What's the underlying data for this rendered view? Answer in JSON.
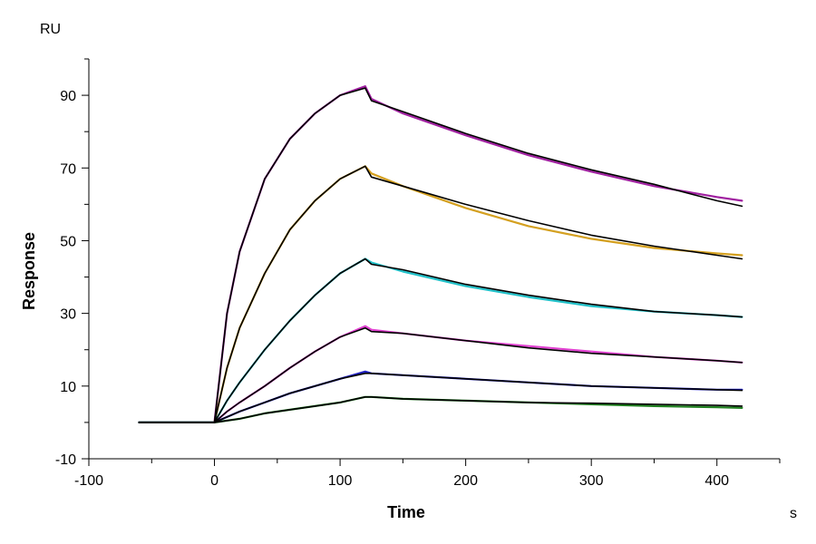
{
  "chart_data": {
    "type": "line",
    "xlabel": "Time",
    "ylabel": "Response",
    "x_unit": "s",
    "y_unit": "RU",
    "xlim": [
      -100,
      450
    ],
    "ylim": [
      -10,
      100
    ],
    "x_ticks": [
      -100,
      0,
      100,
      200,
      300,
      400
    ],
    "y_ticks": [
      -10,
      10,
      30,
      50,
      70,
      90
    ],
    "grid": false,
    "legend": "none",
    "series": [
      {
        "color": "#a020a0",
        "x": [
          -60,
          0,
          10,
          20,
          40,
          60,
          80,
          100,
          120,
          125,
          150,
          200,
          250,
          300,
          350,
          400,
          420
        ],
        "y": [
          0,
          0,
          30,
          47,
          67,
          78,
          85,
          90,
          92.5,
          89,
          85,
          79,
          73.5,
          69,
          65,
          62,
          61
        ]
      },
      {
        "color": "#d4a020",
        "x": [
          -60,
          0,
          10,
          20,
          40,
          60,
          80,
          100,
          120,
          125,
          150,
          200,
          250,
          300,
          350,
          400,
          420
        ],
        "y": [
          0,
          0,
          15,
          26,
          41,
          53,
          61,
          67,
          70.5,
          68.5,
          65,
          59,
          54,
          50.5,
          48,
          46.5,
          46
        ]
      },
      {
        "color": "#20c0c8",
        "x": [
          -60,
          0,
          10,
          20,
          40,
          60,
          80,
          100,
          120,
          125,
          150,
          200,
          250,
          300,
          350,
          400,
          420
        ],
        "y": [
          0,
          0,
          6,
          11,
          20,
          28,
          35,
          41,
          45,
          44,
          41.5,
          37.5,
          34.5,
          32,
          30.5,
          29.5,
          29
        ]
      },
      {
        "color": "#e040d0",
        "x": [
          -60,
          0,
          10,
          20,
          40,
          60,
          80,
          100,
          120,
          125,
          150,
          200,
          250,
          300,
          350,
          400,
          420
        ],
        "y": [
          0,
          0,
          3,
          5.5,
          10,
          15,
          19.5,
          23.5,
          26.5,
          25.5,
          24.5,
          22.5,
          21,
          19.5,
          18,
          17,
          16.5
        ]
      },
      {
        "color": "#2020c0",
        "x": [
          -60,
          0,
          10,
          20,
          40,
          60,
          80,
          100,
          120,
          125,
          150,
          200,
          250,
          300,
          350,
          400,
          420
        ],
        "y": [
          0,
          0,
          1.5,
          3,
          5.5,
          8,
          10,
          12,
          14,
          13.5,
          13,
          12,
          11,
          10,
          9.5,
          9,
          9
        ]
      },
      {
        "color": "#208020",
        "x": [
          -60,
          0,
          10,
          20,
          40,
          60,
          80,
          100,
          120,
          125,
          150,
          200,
          250,
          300,
          350,
          400,
          420
        ],
        "y": [
          0,
          0,
          0.5,
          1,
          2.5,
          3.5,
          4.5,
          5.5,
          7,
          7,
          6.5,
          6,
          5.5,
          5,
          4.5,
          4.2,
          4
        ]
      }
    ],
    "fits": [
      {
        "color": "#000000",
        "x": [
          -60,
          0,
          10,
          20,
          40,
          60,
          80,
          100,
          120,
          125,
          150,
          200,
          250,
          300,
          350,
          400,
          420
        ],
        "y": [
          0,
          0,
          30,
          47,
          67,
          78,
          85,
          90,
          92,
          88.5,
          85.5,
          79.5,
          74,
          69.5,
          65.5,
          61,
          59.5
        ]
      },
      {
        "color": "#000000",
        "x": [
          -60,
          0,
          10,
          20,
          40,
          60,
          80,
          100,
          120,
          125,
          150,
          200,
          250,
          300,
          350,
          400,
          420
        ],
        "y": [
          0,
          0,
          15,
          26,
          41,
          53,
          61,
          67,
          70.5,
          67.5,
          65,
          60,
          55.5,
          51.5,
          48.5,
          46,
          45
        ]
      },
      {
        "color": "#000000",
        "x": [
          -60,
          0,
          10,
          20,
          40,
          60,
          80,
          100,
          120,
          125,
          150,
          200,
          250,
          300,
          350,
          400,
          420
        ],
        "y": [
          0,
          0,
          6,
          11,
          20,
          28,
          35,
          41,
          45,
          43.5,
          42,
          38,
          35,
          32.5,
          30.5,
          29.5,
          29
        ]
      },
      {
        "color": "#000000",
        "x": [
          -60,
          0,
          10,
          20,
          40,
          60,
          80,
          100,
          120,
          125,
          150,
          200,
          250,
          300,
          350,
          400,
          420
        ],
        "y": [
          0,
          0,
          3,
          5.5,
          10,
          15,
          19.5,
          23.5,
          26,
          25,
          24.5,
          22.5,
          20.5,
          19,
          18,
          17,
          16.5
        ]
      },
      {
        "color": "#000000",
        "x": [
          -60,
          0,
          10,
          20,
          40,
          60,
          80,
          100,
          120,
          125,
          150,
          200,
          250,
          300,
          350,
          400,
          420
        ],
        "y": [
          0,
          0,
          1.5,
          3,
          5.5,
          8,
          10,
          12,
          13.5,
          13.5,
          13,
          12,
          11,
          10,
          9.5,
          9,
          8.8
        ]
      },
      {
        "color": "#000000",
        "x": [
          -60,
          0,
          10,
          20,
          40,
          60,
          80,
          100,
          120,
          125,
          150,
          200,
          250,
          300,
          350,
          400,
          420
        ],
        "y": [
          0,
          0,
          0.5,
          1,
          2.5,
          3.5,
          4.5,
          5.5,
          7,
          7,
          6.5,
          6,
          5.5,
          5.3,
          5,
          4.7,
          4.5
        ]
      }
    ]
  }
}
